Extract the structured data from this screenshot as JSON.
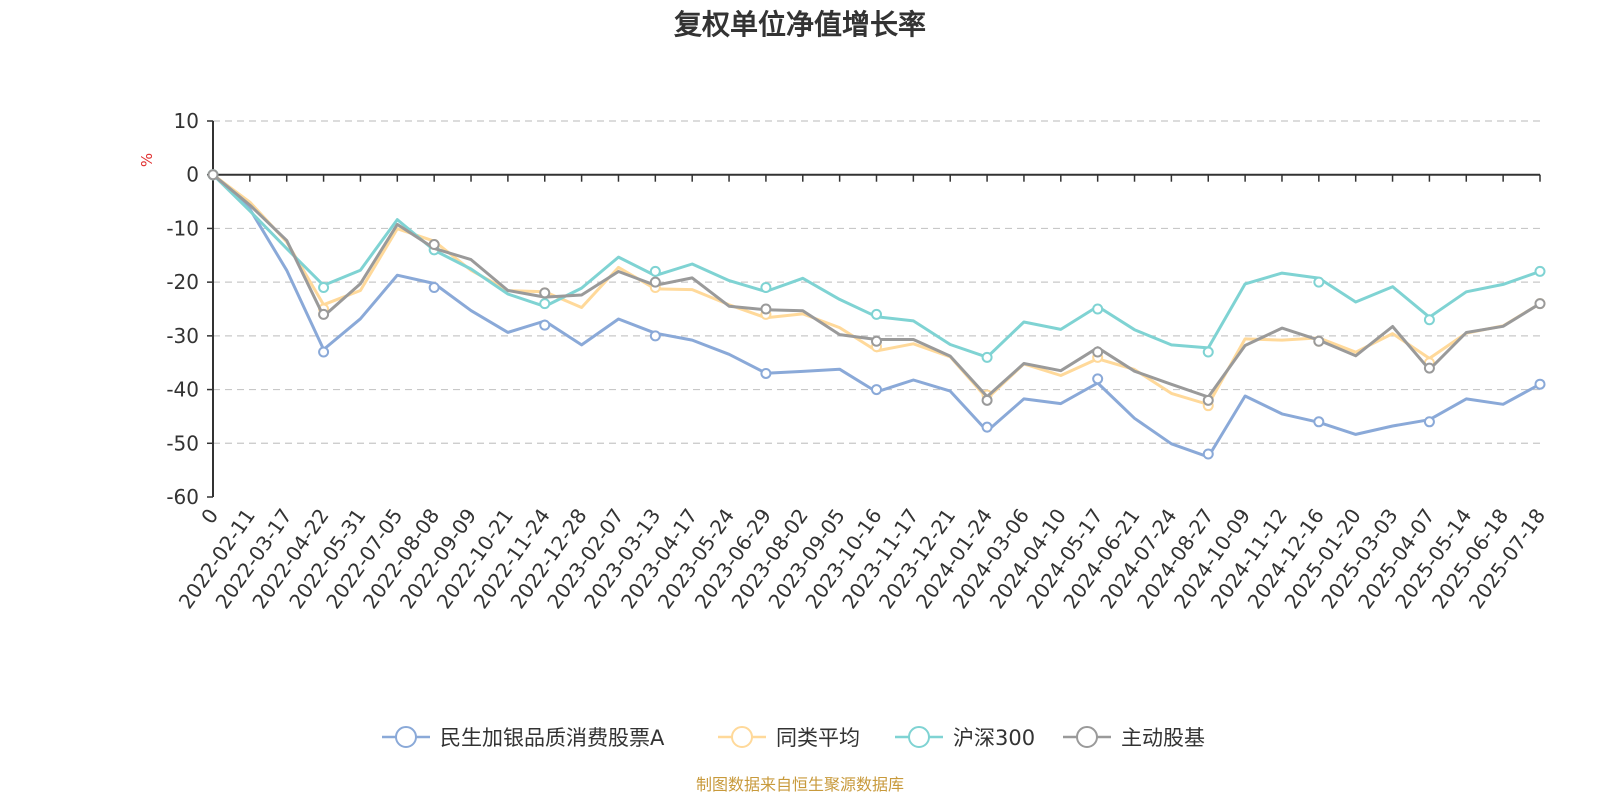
{
  "footer": {
    "source": "制图数据来自恒生聚源数据库"
  },
  "chart_data": {
    "type": "line",
    "title": "复权单位净值增长率",
    "ylabel": "%",
    "xlabel": "",
    "ylim": [
      -60,
      10
    ],
    "yticks": [
      10,
      0,
      -10,
      -20,
      -30,
      -40,
      -50,
      -60
    ],
    "grid": true,
    "legend_position": "bottom",
    "x": [
      "0",
      "2022-02-11",
      "2022-03-17",
      "2022-04-22",
      "2022-05-31",
      "2022-07-05",
      "2022-08-08",
      "2022-09-09",
      "2022-10-21",
      "2022-11-24",
      "2022-12-28",
      "2023-02-07",
      "2023-03-13",
      "2023-04-17",
      "2023-05-24",
      "2023-06-29",
      "2023-08-02",
      "2023-09-05",
      "2023-10-16",
      "2023-11-17",
      "2023-12-21",
      "2024-01-24",
      "2024-03-06",
      "2024-04-10",
      "2024-05-17",
      "2024-06-21",
      "2024-07-24",
      "2024-08-27",
      "2024-10-09",
      "2024-11-12",
      "2024-12-16",
      "2025-01-20",
      "2025-03-03",
      "2025-04-07",
      "2025-05-14",
      "2025-06-18",
      "2025-07-18"
    ],
    "series": [
      {
        "name": "民生加银品质消费股票A",
        "color": "#8aa9d8",
        "values": [
          0,
          -7,
          -17,
          -33,
          -27,
          -18,
          -21,
          -25,
          -29,
          -28,
          -31,
          -27,
          -30,
          -30,
          -34,
          -37,
          -36,
          -37,
          -40,
          -38,
          -41,
          -47,
          -42,
          -43,
          -38,
          -46,
          -50,
          -52,
          -42,
          -44,
          -46,
          -49,
          -46,
          -46,
          -42,
          -42,
          -39
        ]
      },
      {
        "name": "同类平均",
        "color": "#ffd99a",
        "values": [
          0,
          -5,
          -12,
          -25,
          -21,
          -10,
          -13,
          -17,
          -22,
          -22,
          -24,
          -18,
          -21,
          -21,
          -25,
          -26,
          -26,
          -29,
          -32,
          -32,
          -34,
          -41,
          -36,
          -37,
          -34,
          -37,
          -40,
          -43,
          -31,
          -30,
          -31,
          -33,
          -29,
          -35,
          -29,
          -28,
          -24
        ]
      },
      {
        "name": "沪深300",
        "color": "#7fd3d3",
        "values": [
          0,
          -6,
          -14,
          -21,
          -17,
          -9,
          -14,
          -17,
          -23,
          -24,
          -21,
          -16,
          -18,
          -17,
          -20,
          -21,
          -20,
          -23,
          -26,
          -28,
          -31,
          -34,
          -28,
          -28,
          -25,
          -29,
          -31,
          -33,
          -20,
          -18,
          -20,
          -23,
          -21,
          -27,
          -21,
          -21,
          -18
        ]
      },
      {
        "name": "主动股基",
        "color": "#9a9a9a",
        "values": [
          0,
          -5,
          -13,
          -26,
          -20,
          -10,
          -13,
          -16,
          -22,
          -22,
          -23,
          -18,
          -20,
          -20,
          -24,
          -25,
          -26,
          -29,
          -31,
          -31,
          -33,
          -42,
          -35,
          -36,
          -33,
          -36,
          -39,
          -42,
          -31,
          -29,
          -31,
          -33,
          -29,
          -36,
          -29,
          -29,
          -24
        ]
      }
    ]
  }
}
